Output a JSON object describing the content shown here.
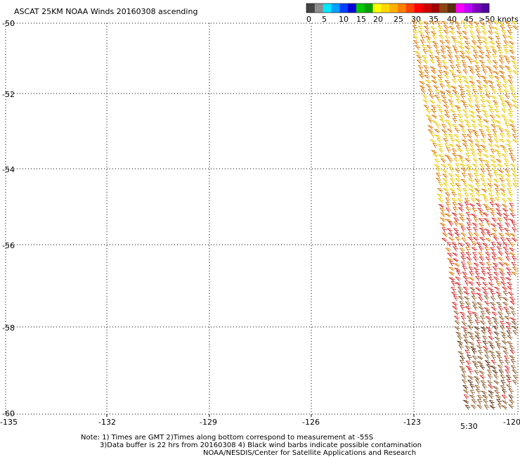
{
  "title": "ASCAT 25KM NOAA Winds 20160308 ascending",
  "colorbar": {
    "colors": [
      "#444444",
      "#8f8f8f",
      "#00e8ff",
      "#00a0ff",
      "#0040ff",
      "#0000d8",
      "#00c800",
      "#00a000",
      "#ffff00",
      "#ffd800",
      "#ffb000",
      "#ff8000",
      "#ff4000",
      "#ff0000",
      "#d00000",
      "#a00000",
      "#8b4513",
      "#5a2d0c",
      "#ff00ff",
      "#c000ff",
      "#8000c0",
      "#5000a0"
    ],
    "labels": [
      "0",
      "5",
      "10",
      "15",
      "20",
      "25",
      "30",
      "35",
      "40",
      "45",
      ">50 knots"
    ]
  },
  "map": {
    "lat_labels": [
      "-50",
      "-52",
      "-54",
      "-56",
      "-58",
      "-60"
    ],
    "lon_labels": [
      "-135",
      "-132",
      "-129",
      "-126",
      "-123",
      "-120"
    ],
    "swath_time": "5:30",
    "swath_time_color": "#800080"
  },
  "notes": {
    "line1": "Note: 1) Times are GMT 2)Times along bottom correspond to measurement at -55S",
    "line2": "3)Data buffer is 22 hrs from 20160308 4) Black wind barbs indicate possible contamination",
    "line3": "NOAA/NESDIS/Center for Satellite Applications and Research"
  },
  "wind_barb_colors": {
    "north": "#e8c800",
    "mid_north": "#d87800",
    "mid": "#d02828",
    "south": "#8a5a28"
  }
}
